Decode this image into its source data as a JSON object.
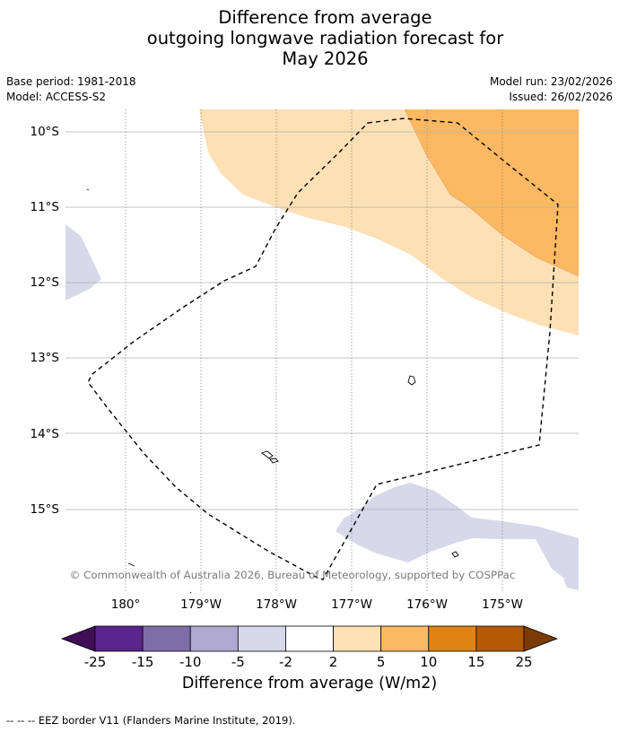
{
  "title": {
    "line1": "Difference from average",
    "line2": "outgoing longwave radiation forecast for",
    "line3": "May 2026"
  },
  "meta": {
    "base_period": "Base period: 1981-2018",
    "model": "Model: ACCESS-S2",
    "model_run": "Model run: 23/02/2026",
    "issued": "Issued: 26/02/2026"
  },
  "map": {
    "lat_labels": [
      "10°S",
      "11°S",
      "12°S",
      "13°S",
      "14°S",
      "15°S"
    ],
    "lon_labels": [
      "180°",
      "179°W",
      "178°W",
      "177°W",
      "176°W",
      "175°W"
    ],
    "copyright": "© Commonwealth of Australia 2026, Bureau of Meteorology, supported by COSPPac"
  },
  "colorbar": {
    "ticks": [
      "-25",
      "-15",
      "-10",
      "-5",
      "-2",
      "2",
      "5",
      "10",
      "15",
      "25"
    ],
    "colors": [
      "#3f0e57",
      "#58268a",
      "#7e6ea8",
      "#b0a9d1",
      "#d7d8ea",
      "#ffffff",
      "#fee0b5",
      "#fdb862",
      "#e08314",
      "#b45a07",
      "#7a3b07"
    ],
    "label": "Difference from average (W/m2)"
  },
  "legend": {
    "line_symbol": "--  --  --",
    "text": "EEZ border V11 (Flanders Marine Institute, 2019)."
  }
}
